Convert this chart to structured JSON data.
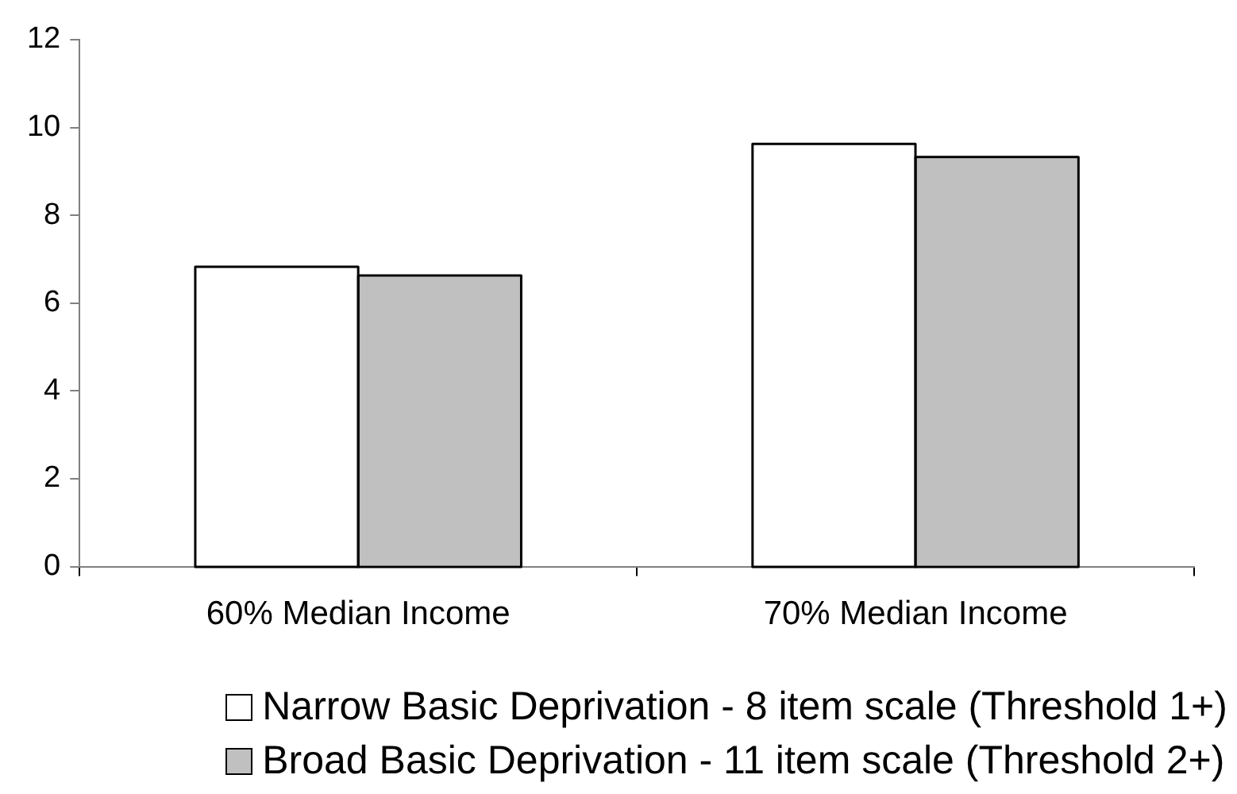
{
  "chart_data": {
    "type": "bar",
    "categories": [
      "60% Median Income",
      "70% Median Income"
    ],
    "series": [
      {
        "name": "Narrow Basic Deprivation - 8 item scale (Threshold 1+)",
        "color": "#ffffff",
        "values": [
          6.8,
          9.6
        ]
      },
      {
        "name": "Broad Basic Deprivation - 11 item scale (Threshold 2+)",
        "color": "#c0c0c0",
        "values": [
          6.6,
          9.3
        ]
      }
    ],
    "ylim": [
      0,
      12
    ],
    "yticks": [
      0,
      2,
      4,
      6,
      8,
      10,
      12
    ],
    "grid": false,
    "legend": "bottom right"
  }
}
